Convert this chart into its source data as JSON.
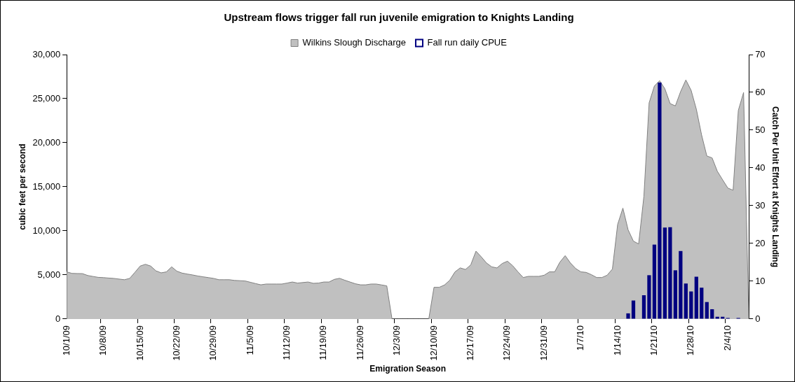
{
  "chart_data": {
    "type": "area",
    "title": "Upstream flows trigger fall run juvenile emigration to Knights Landing",
    "xlabel": "Emigration Season",
    "ylabel": "cubic feet per second",
    "y2label": "Catch Per Unit Effort at Knights Landing",
    "categories": [
      "10/1/09",
      null,
      null,
      null,
      null,
      null,
      null,
      "10/8/09",
      null,
      null,
      null,
      null,
      null,
      null,
      "10/15/09",
      null,
      null,
      null,
      null,
      null,
      null,
      "10/22/09",
      null,
      null,
      null,
      null,
      null,
      null,
      "10/29/09",
      null,
      null,
      null,
      null,
      null,
      null,
      "11/5/09",
      null,
      null,
      null,
      null,
      null,
      null,
      "11/12/09",
      null,
      null,
      null,
      null,
      null,
      null,
      "11/19/09",
      null,
      null,
      null,
      null,
      null,
      null,
      "11/26/09",
      null,
      null,
      null,
      null,
      null,
      null,
      "12/3/09",
      null,
      null,
      null,
      null,
      null,
      null,
      "12/10/09",
      null,
      null,
      null,
      null,
      null,
      null,
      "12/17/09",
      null,
      null,
      null,
      null,
      null,
      null,
      "12/24/09",
      null,
      null,
      null,
      null,
      null,
      null,
      "12/31/09",
      null,
      null,
      null,
      null,
      null,
      null,
      "1/7/10",
      null,
      null,
      null,
      null,
      null,
      null,
      "1/14/10",
      null,
      null,
      null,
      null,
      null,
      null,
      "1/21/10",
      null,
      null,
      null,
      null,
      null,
      null,
      "1/28/10",
      null,
      null,
      null,
      null,
      null,
      null,
      "2/4/10",
      null,
      null,
      null,
      null
    ],
    "series": [
      {
        "name": "Wilkins Slough Discharge",
        "color": "#c0c0c0",
        "values": [
          5350,
          5180,
          5160,
          5150,
          4940,
          4830,
          4730,
          4700,
          4650,
          4610,
          4530,
          4460,
          4610,
          5300,
          6010,
          6210,
          6010,
          5470,
          5240,
          5350,
          5920,
          5430,
          5210,
          5100,
          5000,
          4880,
          4790,
          4700,
          4610,
          4460,
          4460,
          4460,
          4380,
          4350,
          4320,
          4170,
          4020,
          3880,
          3970,
          3970,
          3970,
          3970,
          4080,
          4200,
          4080,
          4140,
          4200,
          4050,
          4080,
          4200,
          4200,
          4500,
          4620,
          4400,
          4200,
          4000,
          3880,
          3880,
          3970,
          3970,
          3870,
          3760,
          0,
          0,
          0,
          0,
          0,
          0,
          0,
          0,
          3600,
          3600,
          3860,
          4400,
          5350,
          5800,
          5620,
          6140,
          7700,
          7060,
          6360,
          5920,
          5800,
          6300,
          6560,
          6050,
          5350,
          4710,
          4840,
          4840,
          4840,
          4970,
          5350,
          5350,
          6460,
          7190,
          6360,
          5730,
          5350,
          5290,
          5030,
          4710,
          4710,
          4970,
          5670,
          10740,
          12580,
          10110,
          8840,
          8520,
          13910,
          24530,
          26430,
          27040,
          26120,
          24440,
          24180,
          25800,
          27120,
          25950,
          23800,
          20880,
          18500,
          18280,
          16760,
          15800,
          14860,
          14610,
          23670,
          25700,
          0
        ]
      },
      {
        "name": "Fall run daily CPUE",
        "type": "bar",
        "axis": "y2",
        "color": "#000080",
        "values": [
          null,
          null,
          null,
          null,
          null,
          null,
          null,
          null,
          null,
          null,
          null,
          null,
          null,
          null,
          null,
          null,
          null,
          null,
          null,
          null,
          null,
          null,
          null,
          null,
          null,
          null,
          null,
          null,
          null,
          null,
          null,
          null,
          null,
          null,
          null,
          null,
          null,
          null,
          null,
          null,
          null,
          null,
          null,
          null,
          null,
          null,
          null,
          null,
          null,
          null,
          null,
          null,
          null,
          null,
          null,
          null,
          null,
          null,
          null,
          null,
          null,
          null,
          null,
          null,
          null,
          null,
          null,
          null,
          null,
          null,
          null,
          null,
          null,
          null,
          null,
          null,
          null,
          null,
          null,
          null,
          null,
          null,
          null,
          null,
          null,
          null,
          null,
          null,
          null,
          null,
          null,
          null,
          null,
          null,
          null,
          null,
          null,
          null,
          null,
          null,
          null,
          null,
          null,
          null,
          null,
          null,
          null,
          1.5,
          4.9,
          null,
          6.3,
          11.6,
          19.7,
          62.6,
          24.2,
          24.3,
          12.9,
          18.0,
          9.4,
          7.3,
          11.2,
          8.3,
          4.5,
          2.6,
          0.6,
          0.6,
          0.3,
          null,
          0.3,
          null,
          null
        ]
      }
    ],
    "ylim": [
      0,
      30000
    ],
    "yticks": [
      0,
      {
        "value": 5000,
        "label": "5,000"
      },
      {
        "value": 10000,
        "label": "10,000"
      },
      {
        "value": 15000,
        "label": "15,000"
      },
      {
        "value": 20000,
        "label": "20,000"
      },
      {
        "value": 25000,
        "label": "25,000"
      },
      {
        "value": 30000,
        "label": "30,000"
      }
    ],
    "y2lim": [
      0,
      70
    ],
    "y2ticks": [
      0,
      10,
      20,
      30,
      40,
      50,
      60,
      70
    ],
    "grid": false,
    "legend": "top"
  }
}
